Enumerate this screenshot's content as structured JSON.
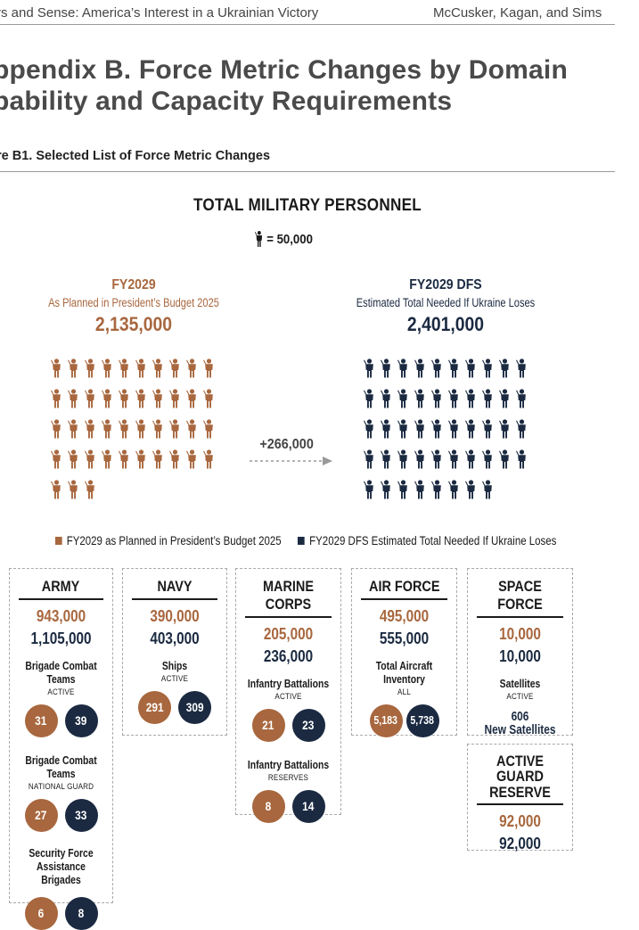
{
  "header": {
    "left": "rs and Sense: America’s Interest in a Ukrainian Victory",
    "right": "McCusker, Kagan, and Sims"
  },
  "appendix": {
    "line1": "ppendix B. Force Metric Changes by Domain",
    "line2": "pability and Capacity Requirements"
  },
  "figure_label": "re B1. Selected List of Force Metric Changes",
  "infographic": {
    "title": "TOTAL MILITARY PERSONNEL",
    "key_text": "= 50,000",
    "left": {
      "year": "FY2029",
      "subtitle": "As Planned in President’s Budget 2025",
      "total": "2,135,000",
      "icon_count": 43,
      "color": "#a8673e"
    },
    "right": {
      "year": "FY2029 DFS",
      "subtitle": "Estimated Total Needed If Ukraine Loses",
      "total": "2,401,000",
      "icon_count": 48,
      "color": "#1b2a41"
    },
    "delta": "+266,000",
    "legend": {
      "planned": "FY2029 as Planned in President’s Budget 2025",
      "needed": "FY2029 DFS Estimated Total Needed If Ukraine Loses"
    }
  },
  "services": {
    "army": {
      "name": "ARMY",
      "planned": "943,000",
      "needed": "1,105,000",
      "m1_label": "Brigade Combat Teams",
      "m1_sub": "ACTIVE",
      "m1_a": "31",
      "m1_b": "39",
      "m2_label": "Brigade Combat Teams",
      "m2_sub": "NATIONAL GUARD",
      "m2_a": "27",
      "m2_b": "33",
      "m3_label_1": "Security Force",
      "m3_label_2": "Assistance Brigades",
      "m3_a": "6",
      "m3_b": "8"
    },
    "navy": {
      "name": "NAVY",
      "planned": "390,000",
      "needed": "403,000",
      "m1_label": "Ships",
      "m1_sub": "ACTIVE",
      "m1_a": "291",
      "m1_b": "309"
    },
    "marines": {
      "name": "MARINE CORPS",
      "planned": "205,000",
      "needed": "236,000",
      "m1_label": "Infantry Battalions",
      "m1_sub": "ACTIVE",
      "m1_a": "21",
      "m1_b": "23",
      "m2_label": "Infantry Battalions",
      "m2_sub": "RESERVES",
      "m2_a": "8",
      "m2_b": "14"
    },
    "air_force": {
      "name": "AIR FORCE",
      "planned": "495,000",
      "needed": "555,000",
      "m1_label": "Total Aircraft Inventory",
      "m1_sub": "ALL",
      "m1_a": "5,183",
      "m1_b": "5,738"
    },
    "space_force": {
      "name": "SPACE FORCE",
      "planned": "10,000",
      "needed": "10,000",
      "m1_label": "Satellites",
      "m1_sub": "ACTIVE",
      "m1_value": "606",
      "m1_value_label": "New Satellites"
    },
    "agr": {
      "name_1": "ACTIVE GUARD",
      "name_2": "RESERVE",
      "planned": "92,000",
      "needed": "92,000"
    }
  },
  "colors": {
    "planned": "#a8673e",
    "needed": "#1b2a41"
  }
}
